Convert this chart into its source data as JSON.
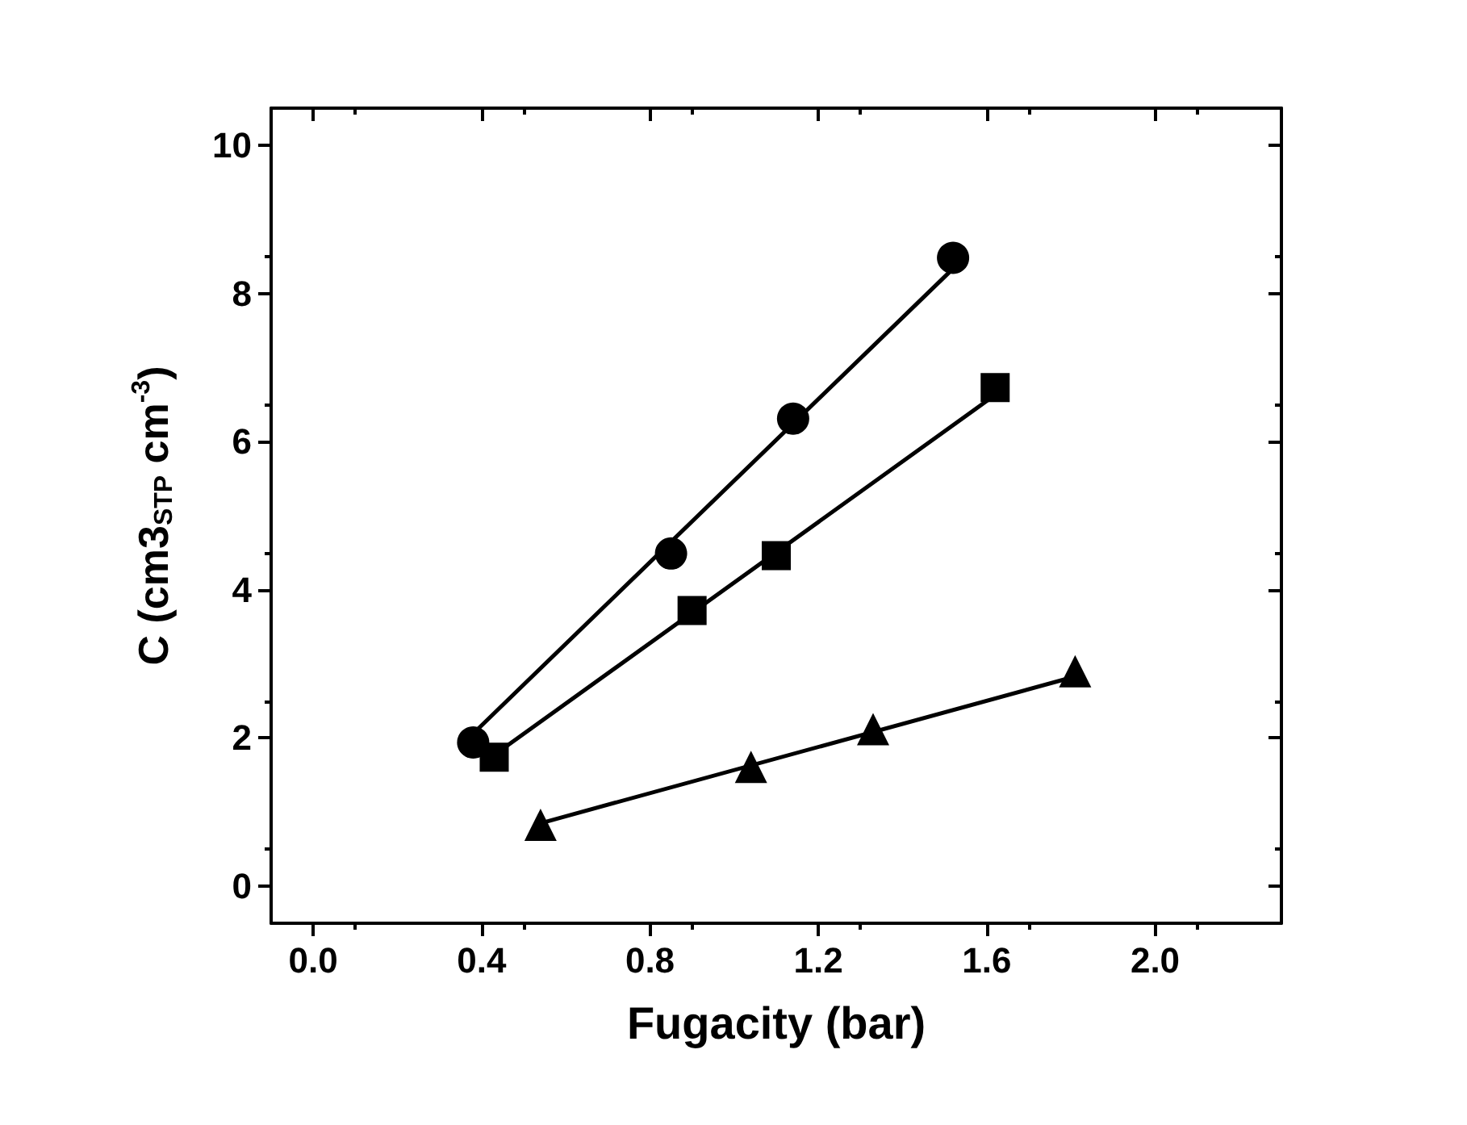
{
  "chart_data": {
    "type": "scatter",
    "xlabel": "Fugacity (bar)",
    "ylabel": "C (cm3$_{STP}$ cm$^{-3}$)",
    "xlim": [
      -0.1,
      2.3
    ],
    "xticks": [
      {
        "value": 0,
        "label": "0.0"
      },
      0.4,
      0.8,
      1.2,
      1.6,
      {
        "value": 2,
        "label": "2.0"
      }
    ],
    "ylim": [
      -0.5,
      10.5
    ],
    "yticks": [
      0,
      2,
      4,
      6,
      8,
      10
    ],
    "grid": false,
    "series": [
      {
        "marker": "circle",
        "color": "#000000",
        "x": [
          0.38,
          0.85,
          1.14,
          1.52
        ],
        "values": [
          1.94,
          4.49,
          6.31,
          8.48
        ]
      },
      {
        "marker": "square",
        "color": "#000000",
        "x": [
          0.43,
          0.9,
          1.1,
          1.62
        ],
        "values": [
          1.74,
          3.72,
          4.46,
          6.73
        ]
      },
      {
        "marker": "triangle",
        "color": "#000000",
        "x": [
          0.54,
          1.04,
          1.33,
          1.81
        ],
        "values": [
          0.83,
          1.61,
          2.12,
          2.9
        ]
      },
      {
        "type": "line",
        "marker": "none",
        "line_style": "solid",
        "color": "#000000",
        "x": [
          0.38,
          1.51
        ],
        "values": [
          2.06,
          8.28
        ]
      },
      {
        "type": "line",
        "marker": "none",
        "line_style": "solid",
        "color": "#000000",
        "x": [
          0.43,
          1.62
        ],
        "values": [
          1.77,
          6.63
        ]
      },
      {
        "type": "line",
        "marker": "none",
        "line_style": "solid",
        "color": "#000000",
        "x": [
          0.54,
          1.81
        ],
        "values": [
          0.85,
          2.83
        ]
      }
    ]
  }
}
